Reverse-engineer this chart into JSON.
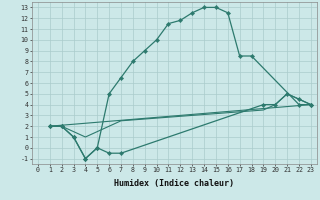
{
  "xlabel": "Humidex (Indice chaleur)",
  "background_color": "#cce8e8",
  "grid_color": "#aacccc",
  "line_color": "#2d7a6e",
  "xlim": [
    -0.5,
    23.5
  ],
  "ylim": [
    -1.5,
    13.5
  ],
  "xticks": [
    0,
    1,
    2,
    3,
    4,
    5,
    6,
    7,
    8,
    9,
    10,
    11,
    12,
    13,
    14,
    15,
    16,
    17,
    18,
    19,
    20,
    21,
    22,
    23
  ],
  "yticks": [
    -1,
    0,
    1,
    2,
    3,
    4,
    5,
    6,
    7,
    8,
    9,
    10,
    11,
    12,
    13
  ],
  "curve1_x": [
    1,
    2,
    3,
    4,
    5,
    6,
    7,
    8,
    9,
    10,
    11,
    12,
    13,
    14,
    15,
    16,
    17,
    18,
    22,
    23
  ],
  "curve1_y": [
    2,
    2,
    1,
    -1,
    0,
    5,
    6.5,
    8,
    9,
    10,
    11.5,
    11.8,
    12.5,
    13,
    13,
    12.5,
    8.5,
    8.5,
    4,
    4
  ],
  "curve2_x": [
    1,
    2,
    3,
    4,
    5,
    6,
    7,
    19,
    20,
    21,
    22,
    23
  ],
  "curve2_y": [
    2,
    2,
    1,
    -1,
    0,
    -0.5,
    -0.5,
    4,
    4,
    5,
    4.5,
    4
  ],
  "curve3_x": [
    1,
    23
  ],
  "curve3_y": [
    2,
    4
  ],
  "curve4_x": [
    1,
    2,
    3,
    4,
    5,
    6,
    7,
    19,
    20,
    21,
    22,
    23
  ],
  "curve4_y": [
    2,
    2,
    1.5,
    1,
    1.5,
    2,
    2.5,
    3.5,
    4,
    5,
    4.5,
    4
  ]
}
